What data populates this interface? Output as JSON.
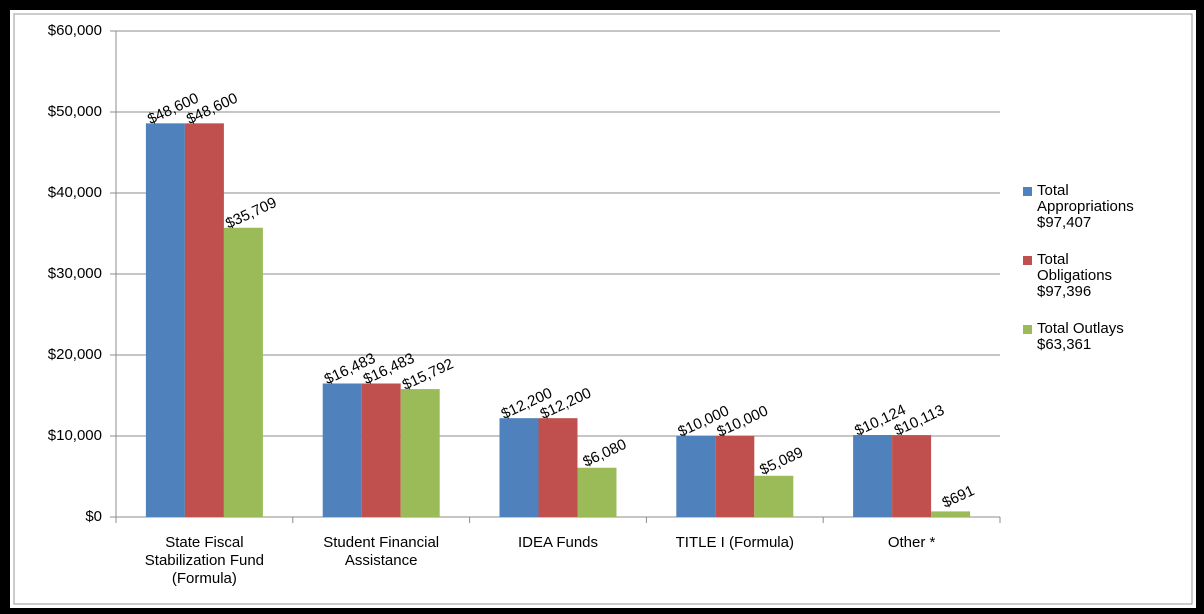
{
  "chart_data": {
    "type": "bar",
    "categories": [
      "State Fiscal Stabilization Fund (Formula)",
      "Student Financial Assistance",
      "IDEA Funds",
      "TITLE I (Formula)",
      "Other *"
    ],
    "series": [
      {
        "name": "Total Appropriations $97,407",
        "color": "#4f81bd",
        "values": [
          48600,
          16483,
          12200,
          10000,
          10124
        ],
        "value_labels": [
          "$48,600",
          "$16,483",
          "$12,200",
          "$10,000",
          "$10,124"
        ]
      },
      {
        "name": "Total Obligations $97,396",
        "color": "#c0504d",
        "values": [
          48600,
          16483,
          12200,
          10000,
          10113
        ],
        "value_labels": [
          "$48,600",
          "$16,483",
          "$12,200",
          "$10,000",
          "$10,113"
        ]
      },
      {
        "name": "Total Outlays $63,361",
        "color": "#9bbb59",
        "values": [
          35709,
          15792,
          6080,
          5089,
          691
        ],
        "value_labels": [
          "$35,709",
          "$15,792",
          "$6,080",
          "$5,089",
          "$691"
        ]
      }
    ],
    "ylim": [
      0,
      60000
    ],
    "yticks": [
      {
        "value": 0,
        "label": "$0"
      },
      {
        "value": 10000,
        "label": "$10,000"
      },
      {
        "value": 20000,
        "label": "$20,000"
      },
      {
        "value": 30000,
        "label": "$30,000"
      },
      {
        "value": 40000,
        "label": "$40,000"
      },
      {
        "value": 50000,
        "label": "$50,000"
      },
      {
        "value": 60000,
        "label": "$60,000"
      }
    ],
    "grid": true,
    "legend": "right"
  }
}
